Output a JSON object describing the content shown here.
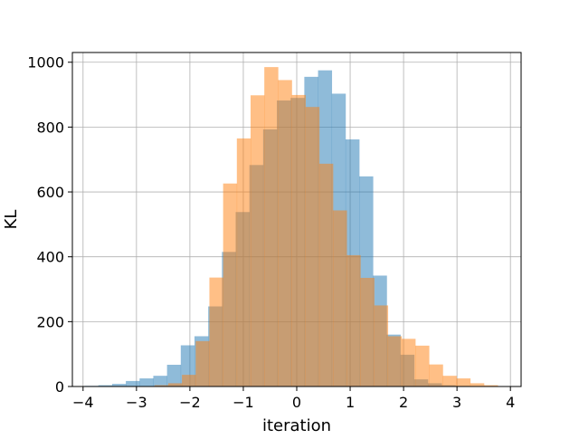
{
  "chart_data": {
    "type": "bar",
    "subtype": "overlapping-histogram",
    "title": "",
    "xlabel": "iteration",
    "ylabel": "KL",
    "xlim": [
      -4.2,
      4.2
    ],
    "ylim": [
      0,
      1030
    ],
    "xticks": [
      -4,
      -3,
      -2,
      -1,
      0,
      1,
      2,
      3,
      4
    ],
    "xtick_labels": [
      "−4",
      "−3",
      "−2",
      "−1",
      "0",
      "1",
      "2",
      "3",
      "4"
    ],
    "yticks": [
      0,
      200,
      400,
      600,
      800,
      1000
    ],
    "ytick_labels": [
      "0",
      "200",
      "400",
      "600",
      "800",
      "1000"
    ],
    "grid": true,
    "legend": "none",
    "bin_width": 0.257,
    "series": [
      {
        "color": "#1f77b4",
        "alpha": 0.5,
        "bins": [
          {
            "x0": -3.97,
            "count": 2
          },
          {
            "x0": -3.713,
            "count": 4
          },
          {
            "x0": -3.456,
            "count": 8
          },
          {
            "x0": -3.199,
            "count": 17
          },
          {
            "x0": -2.942,
            "count": 25
          },
          {
            "x0": -2.685,
            "count": 33
          },
          {
            "x0": -2.428,
            "count": 67
          },
          {
            "x0": -2.171,
            "count": 127
          },
          {
            "x0": -1.914,
            "count": 155
          },
          {
            "x0": -1.657,
            "count": 247
          },
          {
            "x0": -1.4,
            "count": 415
          },
          {
            "x0": -1.143,
            "count": 538
          },
          {
            "x0": -0.886,
            "count": 683
          },
          {
            "x0": -0.629,
            "count": 793
          },
          {
            "x0": -0.372,
            "count": 882
          },
          {
            "x0": -0.115,
            "count": 890
          },
          {
            "x0": 0.142,
            "count": 955
          },
          {
            "x0": 0.399,
            "count": 975
          },
          {
            "x0": 0.656,
            "count": 903
          },
          {
            "x0": 0.913,
            "count": 762
          },
          {
            "x0": 1.17,
            "count": 648
          },
          {
            "x0": 1.427,
            "count": 342
          },
          {
            "x0": 1.684,
            "count": 160
          },
          {
            "x0": 1.941,
            "count": 98
          },
          {
            "x0": 2.198,
            "count": 22
          },
          {
            "x0": 2.455,
            "count": 10
          },
          {
            "x0": 2.712,
            "count": 4
          },
          {
            "x0": 2.969,
            "count": 2
          }
        ]
      },
      {
        "color": "#ff7f0e",
        "alpha": 0.5,
        "bins": [
          {
            "x0": -2.92,
            "count": 1
          },
          {
            "x0": -2.663,
            "count": 4
          },
          {
            "x0": -2.406,
            "count": 10
          },
          {
            "x0": -2.149,
            "count": 36
          },
          {
            "x0": -1.892,
            "count": 140
          },
          {
            "x0": -1.635,
            "count": 336
          },
          {
            "x0": -1.378,
            "count": 626
          },
          {
            "x0": -1.121,
            "count": 765
          },
          {
            "x0": -0.864,
            "count": 898
          },
          {
            "x0": -0.607,
            "count": 985
          },
          {
            "x0": -0.35,
            "count": 945
          },
          {
            "x0": -0.093,
            "count": 899
          },
          {
            "x0": 0.164,
            "count": 862
          },
          {
            "x0": 0.421,
            "count": 687
          },
          {
            "x0": 0.678,
            "count": 543
          },
          {
            "x0": 0.935,
            "count": 405
          },
          {
            "x0": 1.192,
            "count": 335
          },
          {
            "x0": 1.449,
            "count": 250
          },
          {
            "x0": 1.706,
            "count": 155
          },
          {
            "x0": 1.963,
            "count": 147
          },
          {
            "x0": 2.22,
            "count": 126
          },
          {
            "x0": 2.477,
            "count": 68
          },
          {
            "x0": 2.734,
            "count": 33
          },
          {
            "x0": 2.991,
            "count": 25
          },
          {
            "x0": 3.248,
            "count": 10
          },
          {
            "x0": 3.505,
            "count": 4
          },
          {
            "x0": 3.762,
            "count": 1
          }
        ]
      }
    ]
  }
}
